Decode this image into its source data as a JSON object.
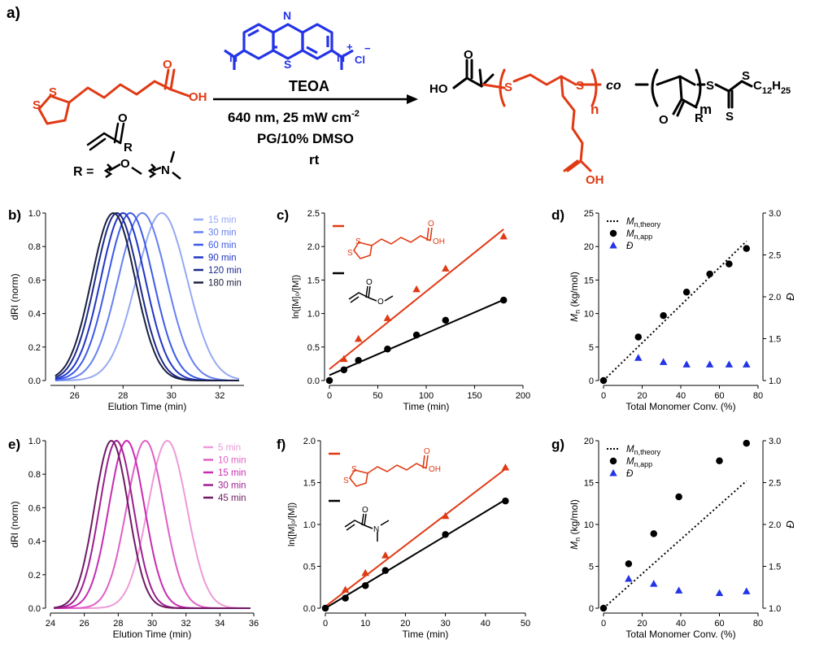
{
  "figure": {
    "panel_labels": {
      "a": "a)",
      "b": "b)",
      "c": "c)",
      "d": "d)",
      "e": "e)",
      "f": "f)",
      "g": "g)"
    }
  },
  "scheme": {
    "heteroatoms": {
      "s": "S",
      "n": "N",
      "o": "O",
      "ho": "HO",
      "oh": "OH",
      "r": "R",
      "cl": "Cl"
    },
    "charges": {
      "plus": "+",
      "minus": "−"
    },
    "r_def_label": "R =",
    "catalyst": "TEOA",
    "condition_light": "640 nm, 25 mW cm",
    "condition_light_sup": "-2",
    "condition_solvent": "PG/10% DMSO",
    "condition_temp": "rt",
    "product_n": "n",
    "product_co": "co",
    "product_m": "m",
    "product_tail": "C",
    "product_tail_sub1": "12",
    "product_tail_h": "H",
    "product_tail_sub2": "25",
    "colors": {
      "red": "#e03a14",
      "blue": "#2334e8",
      "black": "#000000"
    }
  },
  "chart_data": [
    {
      "panel": "b",
      "type": "line",
      "xlabel": "Elution Time (min)",
      "ylabel": "dRI (norm)",
      "xlim": [
        25,
        33
      ],
      "ylim": [
        0,
        1.0
      ],
      "xticks": [
        26,
        28,
        30,
        32
      ],
      "yticks": [
        0.0,
        0.2,
        0.4,
        0.6,
        0.8,
        1.0
      ],
      "xtick_labels": [
        "26",
        "28",
        "30",
        "32"
      ],
      "ytick_labels": [
        "0.0",
        "0.2",
        "0.4",
        "0.6",
        "0.8",
        "1.0"
      ],
      "series": [
        {
          "name": "15 min",
          "peak": 29.6,
          "sigma": 1.05,
          "color": "#97a9f3"
        },
        {
          "name": "30 min",
          "peak": 28.8,
          "sigma": 1.0,
          "color": "#6680f0"
        },
        {
          "name": "60 min",
          "peak": 28.3,
          "sigma": 0.95,
          "color": "#3c5ae8"
        },
        {
          "name": "90 min",
          "peak": 28.0,
          "sigma": 0.92,
          "color": "#2236c6"
        },
        {
          "name": "120 min",
          "peak": 27.75,
          "sigma": 0.9,
          "color": "#1c2a8a"
        },
        {
          "name": "180 min",
          "peak": 27.6,
          "sigma": 0.9,
          "color": "#1a2040"
        }
      ]
    },
    {
      "panel": "c",
      "type": "scatter",
      "xlabel": "Time (min)",
      "ylabel": "ln([M]₀/[M])",
      "xlim": [
        0,
        200
      ],
      "ylim": [
        0,
        2.5
      ],
      "xticks": [
        0,
        50,
        100,
        150,
        200
      ],
      "yticks": [
        0.0,
        0.5,
        1.0,
        1.5,
        2.0,
        2.5
      ],
      "xtick_labels": [
        "0",
        "50",
        "100",
        "150",
        "200"
      ],
      "ytick_labels": [
        "0.0",
        "0.5",
        "1.0",
        "1.5",
        "2.0",
        "2.5"
      ],
      "series": [
        {
          "name": "lipoic acid",
          "color": "#e03a14",
          "marker": "triangle",
          "x": [
            15,
            30,
            60,
            90,
            120,
            180
          ],
          "y": [
            0.32,
            0.62,
            0.93,
            1.36,
            1.67,
            2.15
          ],
          "fit": [
            0.17,
            0.0116
          ]
        },
        {
          "name": "methyl acrylate",
          "color": "#000000",
          "marker": "circle",
          "x": [
            0,
            15,
            30,
            60,
            90,
            120,
            180
          ],
          "y": [
            0.0,
            0.16,
            0.3,
            0.47,
            0.68,
            0.9,
            1.2
          ],
          "fit": [
            0.08,
            0.00625
          ]
        }
      ]
    },
    {
      "panel": "d",
      "type": "scatter",
      "xlabel": "Total Monomer Conv. (%)",
      "ylabel": "M",
      "ylabel_sub": "n",
      "ylabel_unit": "(kg/mol)",
      "y2label": "Đ",
      "xlim": [
        0,
        80
      ],
      "ylim": [
        0,
        25
      ],
      "y2lim": [
        1.0,
        3.0
      ],
      "xticks": [
        0,
        20,
        40,
        60,
        80
      ],
      "yticks": [
        0,
        5,
        10,
        15,
        20,
        25
      ],
      "y2ticks": [
        1.0,
        1.5,
        2.0,
        2.5,
        3.0
      ],
      "xtick_labels": [
        "0",
        "20",
        "40",
        "60",
        "80"
      ],
      "ytick_labels": [
        "0",
        "5",
        "10",
        "15",
        "20",
        "25"
      ],
      "y2tick_labels": [
        "1.0",
        "1.5",
        "2.0",
        "2.5",
        "3.0"
      ],
      "legend": [
        {
          "label": "M",
          "sub": "n,theory",
          "style": "dotted"
        },
        {
          "label": "M",
          "sub": "n,app",
          "style": "circle"
        },
        {
          "label": "Đ",
          "sub": "",
          "style": "triangle"
        }
      ],
      "theory": {
        "x": [
          0,
          74
        ],
        "y": [
          0,
          20.8
        ]
      },
      "mn_app": {
        "x": [
          0,
          18,
          31,
          43,
          55,
          65,
          74
        ],
        "y": [
          0,
          6.5,
          9.7,
          13.2,
          15.9,
          17.4,
          19.7
        ]
      },
      "dispersity": {
        "x": [
          18,
          31,
          43,
          55,
          65,
          74
        ],
        "y": [
          1.27,
          1.22,
          1.19,
          1.19,
          1.19,
          1.19
        ]
      }
    },
    {
      "panel": "e",
      "type": "line",
      "xlabel": "Elution Time (min)",
      "ylabel": "dRI (norm)",
      "xlim": [
        24,
        36
      ],
      "ylim": [
        0,
        1.0
      ],
      "xticks": [
        24,
        26,
        28,
        30,
        32,
        34,
        36
      ],
      "yticks": [
        0.0,
        0.2,
        0.4,
        0.6,
        0.8,
        1.0
      ],
      "xtick_labels": [
        "24",
        "26",
        "28",
        "30",
        "32",
        "34",
        "36"
      ],
      "ytick_labels": [
        "0.0",
        "0.2",
        "0.4",
        "0.6",
        "0.8",
        "1.0"
      ],
      "series": [
        {
          "name": "5 min",
          "peak": 30.9,
          "sigma": 1.15,
          "color": "#ee9ad8"
        },
        {
          "name": "10 min",
          "peak": 29.6,
          "sigma": 1.1,
          "color": "#e060c6"
        },
        {
          "name": "15 min",
          "peak": 28.5,
          "sigma": 1.05,
          "color": "#c92bb2"
        },
        {
          "name": "30 min",
          "peak": 27.9,
          "sigma": 1.0,
          "color": "#9e1f8f"
        },
        {
          "name": "45 min",
          "peak": 27.6,
          "sigma": 1.0,
          "color": "#6e1a62"
        }
      ]
    },
    {
      "panel": "f",
      "type": "scatter",
      "xlabel": "Time (min)",
      "ylabel": "ln([M]₀/[M])",
      "xlim": [
        0,
        50
      ],
      "ylim": [
        0,
        2.0
      ],
      "xticks": [
        0,
        10,
        20,
        30,
        40,
        50
      ],
      "yticks": [
        0.0,
        0.5,
        1.0,
        1.5,
        2.0
      ],
      "xtick_labels": [
        "0",
        "10",
        "20",
        "30",
        "40",
        "50"
      ],
      "ytick_labels": [
        "0.0",
        "0.5",
        "1.0",
        "1.5",
        "2.0"
      ],
      "series": [
        {
          "name": "lipoic acid",
          "color": "#e03a14",
          "marker": "triangle",
          "x": [
            5,
            10,
            15,
            30,
            45
          ],
          "y": [
            0.22,
            0.42,
            0.63,
            1.1,
            1.68
          ],
          "fit": [
            0.02,
            0.0365
          ]
        },
        {
          "name": "dimethylacrylamide",
          "color": "#000000",
          "marker": "circle",
          "x": [
            0,
            5,
            10,
            15,
            30,
            45
          ],
          "y": [
            0.0,
            0.12,
            0.27,
            0.45,
            0.88,
            1.28
          ],
          "fit": [
            0.0,
            0.0288
          ]
        }
      ]
    },
    {
      "panel": "g",
      "type": "scatter",
      "xlabel": "Total Monomer Conv. (%)",
      "ylabel": "M",
      "ylabel_sub": "n",
      "ylabel_unit": "(kg/mol)",
      "y2label": "Đ",
      "xlim": [
        0,
        80
      ],
      "ylim": [
        0,
        20
      ],
      "y2lim": [
        1.0,
        3.0
      ],
      "xticks": [
        0,
        20,
        40,
        60,
        80
      ],
      "yticks": [
        0,
        5,
        10,
        15,
        20
      ],
      "y2ticks": [
        1.0,
        1.5,
        2.0,
        2.5,
        3.0
      ],
      "xtick_labels": [
        "0",
        "20",
        "40",
        "60",
        "80"
      ],
      "ytick_labels": [
        "0",
        "5",
        "10",
        "15",
        "20"
      ],
      "y2tick_labels": [
        "1.0",
        "1.5",
        "2.0",
        "2.5",
        "3.0"
      ],
      "legend": [
        {
          "label": "M",
          "sub": "n,theory",
          "style": "dotted"
        },
        {
          "label": "M",
          "sub": "n,app",
          "style": "circle"
        },
        {
          "label": "Đ",
          "sub": "",
          "style": "triangle"
        }
      ],
      "theory": {
        "x": [
          0,
          74
        ],
        "y": [
          0,
          15.2
        ]
      },
      "mn_app": {
        "x": [
          0,
          13,
          26,
          39,
          60,
          74
        ],
        "y": [
          0,
          5.3,
          8.9,
          13.3,
          17.6,
          19.7
        ]
      },
      "dispersity": {
        "x": [
          13,
          26,
          39,
          60,
          74
        ],
        "y": [
          1.35,
          1.29,
          1.21,
          1.18,
          1.2
        ]
      }
    }
  ]
}
